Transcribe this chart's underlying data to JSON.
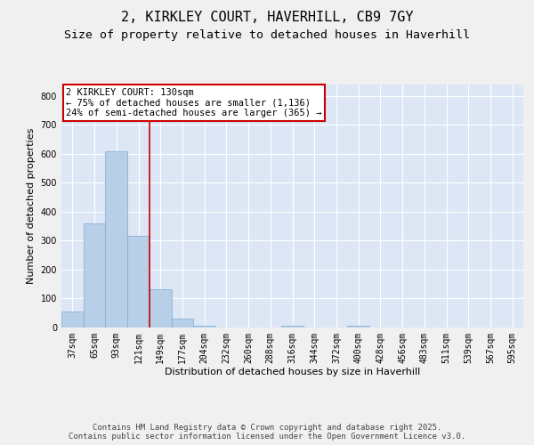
{
  "title": "2, KIRKLEY COURT, HAVERHILL, CB9 7GY",
  "subtitle": "Size of property relative to detached houses in Haverhill",
  "xlabel": "Distribution of detached houses by size in Haverhill",
  "ylabel": "Number of detached properties",
  "categories": [
    "37sqm",
    "65sqm",
    "93sqm",
    "121sqm",
    "149sqm",
    "177sqm",
    "204sqm",
    "232sqm",
    "260sqm",
    "288sqm",
    "316sqm",
    "344sqm",
    "372sqm",
    "400sqm",
    "428sqm",
    "456sqm",
    "483sqm",
    "511sqm",
    "539sqm",
    "567sqm",
    "595sqm"
  ],
  "values": [
    55,
    360,
    610,
    315,
    130,
    30,
    5,
    0,
    0,
    0,
    5,
    0,
    0,
    5,
    0,
    0,
    0,
    0,
    0,
    0,
    0
  ],
  "bar_color": "#b8cfe8",
  "bar_edge_color": "#7aacd4",
  "background_color": "#dce6f5",
  "grid_color": "#ffffff",
  "annotation_text": "2 KIRKLEY COURT: 130sqm\n← 75% of detached houses are smaller (1,136)\n24% of semi-detached houses are larger (365) →",
  "annotation_box_color": "#ffffff",
  "annotation_box_edge_color": "#cc0000",
  "red_line_x": 3.5,
  "ylim": [
    0,
    840
  ],
  "yticks": [
    0,
    100,
    200,
    300,
    400,
    500,
    600,
    700,
    800
  ],
  "footer_text": "Contains HM Land Registry data © Crown copyright and database right 2025.\nContains public sector information licensed under the Open Government Licence v3.0.",
  "title_fontsize": 11,
  "subtitle_fontsize": 9.5,
  "axis_label_fontsize": 8,
  "tick_fontsize": 7,
  "annotation_fontsize": 7.5,
  "footer_fontsize": 6.5,
  "fig_bg_color": "#f0f0f0"
}
